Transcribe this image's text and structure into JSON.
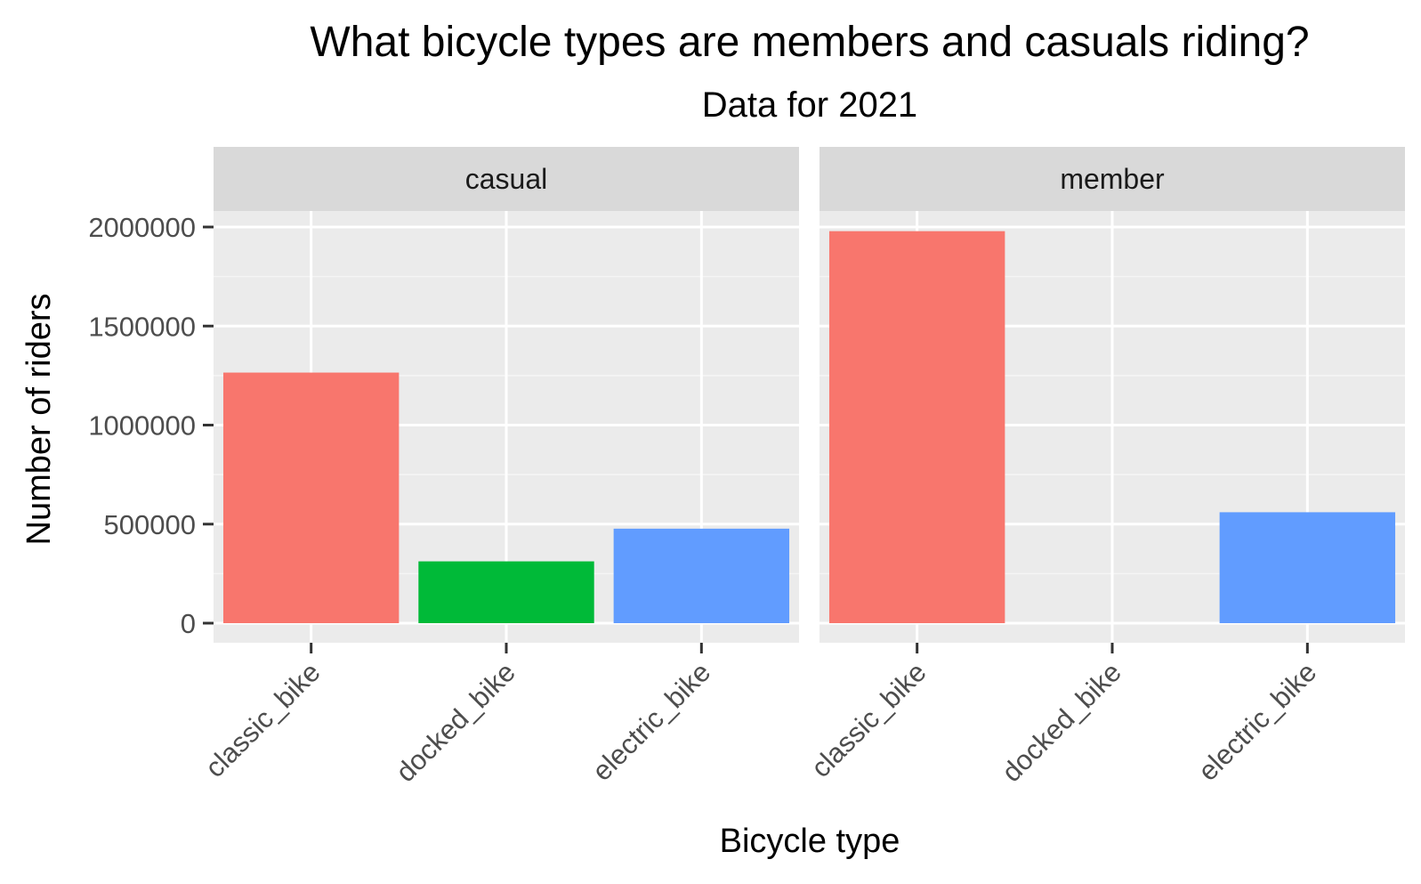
{
  "chart_data": {
    "type": "bar",
    "title": "What bicycle types are members and casuals riding?",
    "subtitle": "Data for 2021",
    "xlabel": "Bicycle type",
    "ylabel": "Number of riders",
    "ylim": [
      0,
      2400000
    ],
    "yticks": [
      0,
      500000,
      1000000,
      1500000,
      2000000
    ],
    "ytick_labels": [
      "0",
      "500000",
      "1000000",
      "1500000",
      "2000000"
    ],
    "grid": true,
    "legend": "none",
    "categories": [
      "classic_bike",
      "docked_bike",
      "electric_bike"
    ],
    "category_colors": [
      "#F8766D",
      "#00BA38",
      "#619CFF"
    ],
    "facets": [
      {
        "label": "casual",
        "values": [
          1265000,
          312000,
          477000
        ]
      },
      {
        "label": "member",
        "values": [
          1979000,
          0,
          560000
        ]
      }
    ]
  }
}
